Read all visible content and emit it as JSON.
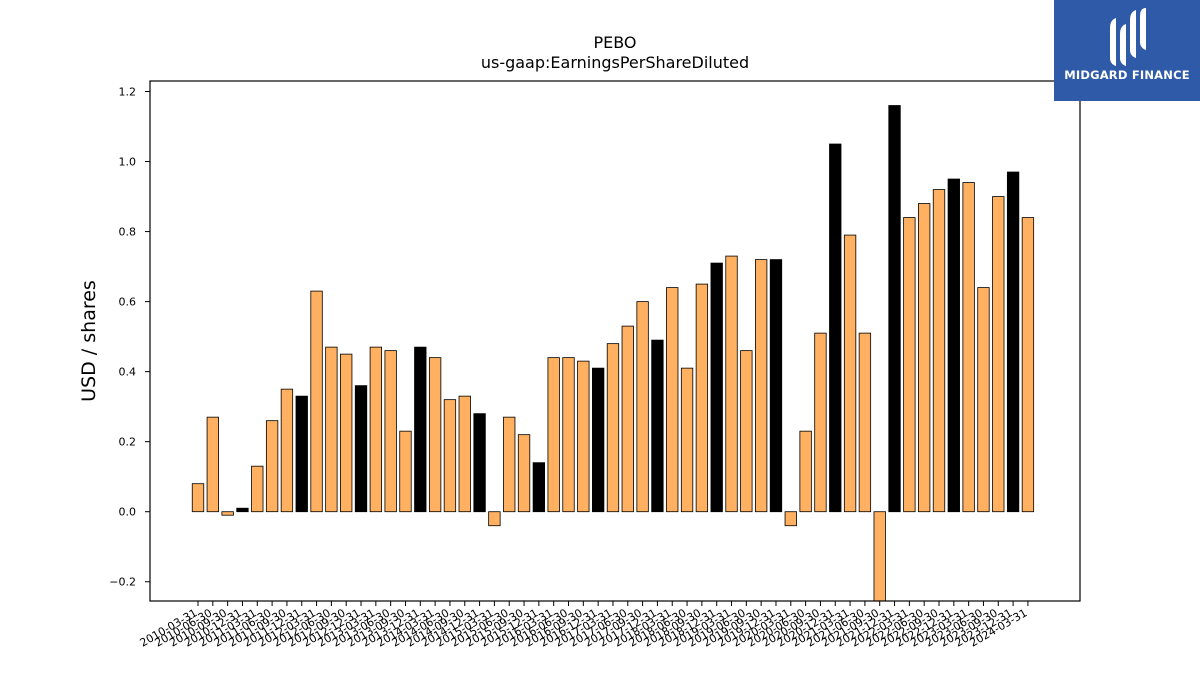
{
  "brand": {
    "name": "MIDGARD FINANCE",
    "color": "#2f5aa8"
  },
  "chart_data": {
    "type": "bar",
    "title": "PEBO",
    "subtitle": "us-gaap:EarningsPerShareDiluted",
    "xlabel": "",
    "ylabel": "USD / shares",
    "ylim": [
      -0.255,
      1.23
    ],
    "yticks": [
      -0.2,
      0.0,
      0.2,
      0.4,
      0.6,
      0.8,
      1.0,
      1.2
    ],
    "ytick_labels": [
      "−0.2",
      "0.0",
      "0.2",
      "0.4",
      "0.6",
      "0.8",
      "1.0",
      "1.2"
    ],
    "colors": {
      "quarter": "#ffb060",
      "annual": "#000000",
      "edge": "#000000"
    },
    "categories": [
      "2010-03-31",
      "2010-06-30",
      "2010-09-30",
      "2010-12-31",
      "2011-03-31",
      "2011-06-30",
      "2011-09-30",
      "2011-12-31",
      "2012-03-31",
      "2012-06-30",
      "2012-09-30",
      "2012-12-31",
      "2013-03-31",
      "2013-06-30",
      "2013-09-30",
      "2013-12-31",
      "2014-03-31",
      "2014-06-30",
      "2014-09-30",
      "2014-12-31",
      "2015-03-31",
      "2015-06-30",
      "2015-09-30",
      "2015-12-31",
      "2016-03-31",
      "2016-06-30",
      "2016-09-30",
      "2016-12-31",
      "2017-03-31",
      "2017-06-30",
      "2017-09-30",
      "2017-12-31",
      "2018-03-31",
      "2018-06-30",
      "2018-09-30",
      "2018-12-31",
      "2019-03-31",
      "2019-06-30",
      "2019-09-30",
      "2019-12-31",
      "2020-03-31",
      "2020-06-30",
      "2020-09-30",
      "2020-12-31",
      "2021-03-31",
      "2021-06-30",
      "2021-09-30",
      "2021-12-31",
      "2022-03-31",
      "2022-06-30",
      "2022-09-30",
      "2022-12-31",
      "2023-03-31",
      "2023-06-30",
      "2023-09-30",
      "2023-12-31",
      "2024-03-31"
    ],
    "values": [
      0.08,
      0.27,
      -0.01,
      0.01,
      0.13,
      0.26,
      0.35,
      0.33,
      0.63,
      0.47,
      0.45,
      0.36,
      0.47,
      0.46,
      0.23,
      0.47,
      0.44,
      0.32,
      0.33,
      0.28,
      -0.04,
      0.27,
      0.22,
      0.14,
      0.44,
      0.44,
      0.43,
      0.41,
      0.48,
      0.53,
      0.6,
      0.49,
      0.64,
      0.41,
      0.65,
      0.71,
      0.73,
      0.46,
      0.72,
      0.72,
      -0.04,
      0.23,
      0.51,
      1.05,
      0.79,
      0.51,
      -0.26,
      1.16,
      0.84,
      0.88,
      0.92,
      0.95,
      0.94,
      0.64,
      0.9,
      0.97,
      0.84
    ],
    "annual": [
      false,
      false,
      false,
      true,
      false,
      false,
      false,
      true,
      false,
      false,
      false,
      true,
      false,
      false,
      false,
      true,
      false,
      false,
      false,
      true,
      false,
      false,
      false,
      true,
      false,
      false,
      false,
      true,
      false,
      false,
      false,
      true,
      false,
      false,
      false,
      true,
      false,
      false,
      false,
      true,
      false,
      false,
      false,
      true,
      false,
      false,
      false,
      true,
      false,
      false,
      false,
      true,
      false,
      false,
      false,
      true,
      false
    ]
  }
}
